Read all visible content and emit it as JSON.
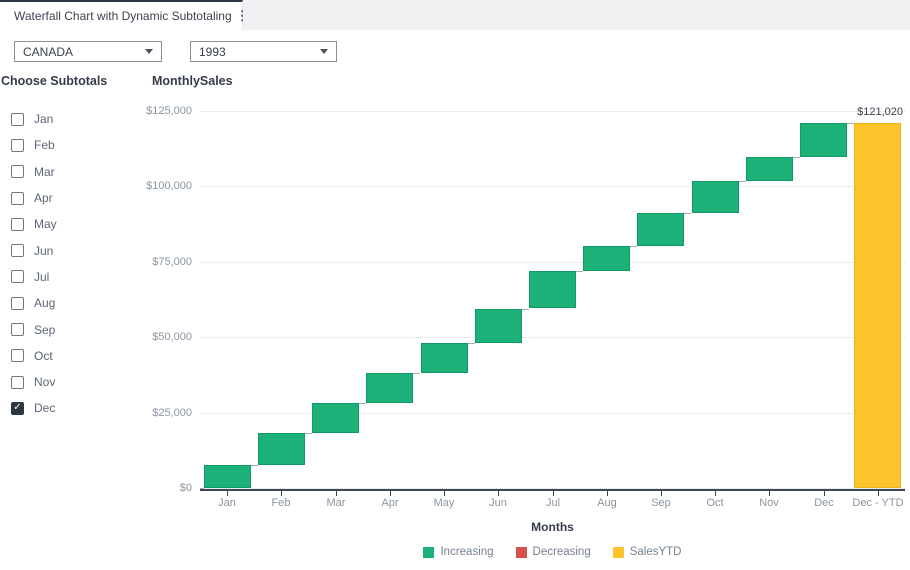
{
  "tab": {
    "title": "Waterfall Chart with Dynamic Subtotaling",
    "menu_icon": "kebab-menu"
  },
  "filters": {
    "country": {
      "value": "CANADA"
    },
    "year": {
      "value": "1993"
    }
  },
  "sidebar": {
    "title": "Choose Subtotals",
    "items": [
      {
        "label": "Jan",
        "checked": false
      },
      {
        "label": "Feb",
        "checked": false
      },
      {
        "label": "Mar",
        "checked": false
      },
      {
        "label": "Apr",
        "checked": false
      },
      {
        "label": "May",
        "checked": false
      },
      {
        "label": "Jun",
        "checked": false
      },
      {
        "label": "Jul",
        "checked": false
      },
      {
        "label": "Aug",
        "checked": false
      },
      {
        "label": "Sep",
        "checked": false
      },
      {
        "label": "Oct",
        "checked": false
      },
      {
        "label": "Nov",
        "checked": false
      },
      {
        "label": "Dec",
        "checked": true
      }
    ]
  },
  "chart_data": {
    "type": "bar",
    "subtype": "waterfall",
    "title": "MonthlySales",
    "xlabel": "Months",
    "ylabel": "",
    "categories": [
      "Jan",
      "Feb",
      "Mar",
      "Apr",
      "May",
      "Jun",
      "Jul",
      "Aug",
      "Sep",
      "Oct",
      "Nov",
      "Dec",
      "Dec - YTD"
    ],
    "increments": [
      7470,
      10720,
      10100,
      9820,
      10100,
      11280,
      12390,
      8200,
      10960,
      10720,
      7870,
      11390
    ],
    "cumulative": [
      7470,
      18190,
      28290,
      38110,
      48210,
      59490,
      71880,
      80080,
      91040,
      101760,
      109630,
      121020
    ],
    "ytd_total": 121020,
    "annotation": "$121,020",
    "ylim": [
      0,
      125000
    ],
    "yticks": [
      0,
      25000,
      50000,
      75000,
      100000,
      125000
    ],
    "ytick_labels": [
      "$0",
      "$25,000",
      "$50,000",
      "$75,000",
      "$100,000",
      "$125,000"
    ],
    "grid": "dotted-horizontal",
    "legend": {
      "position": "bottom",
      "entries": [
        {
          "label": "Increasing",
          "color": "#1cb179"
        },
        {
          "label": "Decreasing",
          "color": "#d8504d"
        },
        {
          "label": "SalesYTD",
          "color": "#fcc32b"
        }
      ]
    },
    "colors": {
      "increasing": "#1cb179",
      "decreasing": "#d8504d",
      "sales_ytd": "#fcc32b"
    }
  }
}
